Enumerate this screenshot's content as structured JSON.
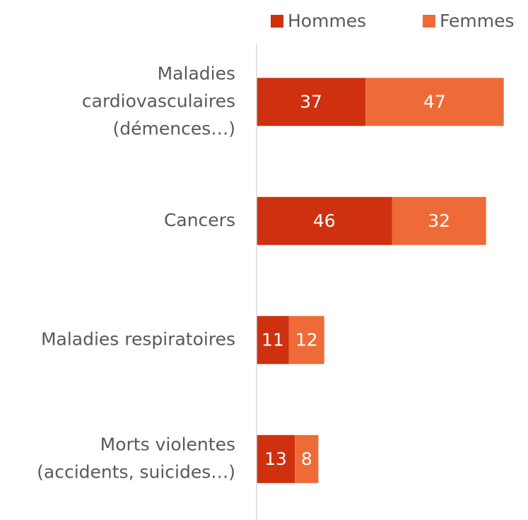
{
  "chart_data": {
    "type": "stacked-barh",
    "categories": [
      [
        "Maladies",
        "cardiovasculaires",
        "(démences…)"
      ],
      [
        "Cancers"
      ],
      [
        "Maladies respiratoires"
      ],
      [
        "Morts violentes",
        "(accidents, suicides…)"
      ]
    ],
    "series": [
      {
        "name": "Hommes",
        "color": "#cf3010",
        "values": [
          37,
          46,
          11,
          13
        ]
      },
      {
        "name": "Femmes",
        "color": "#ee6b37",
        "values": [
          47,
          32,
          12,
          8
        ]
      }
    ],
    "xlim": [
      0,
      92
    ],
    "legend": "top"
  }
}
